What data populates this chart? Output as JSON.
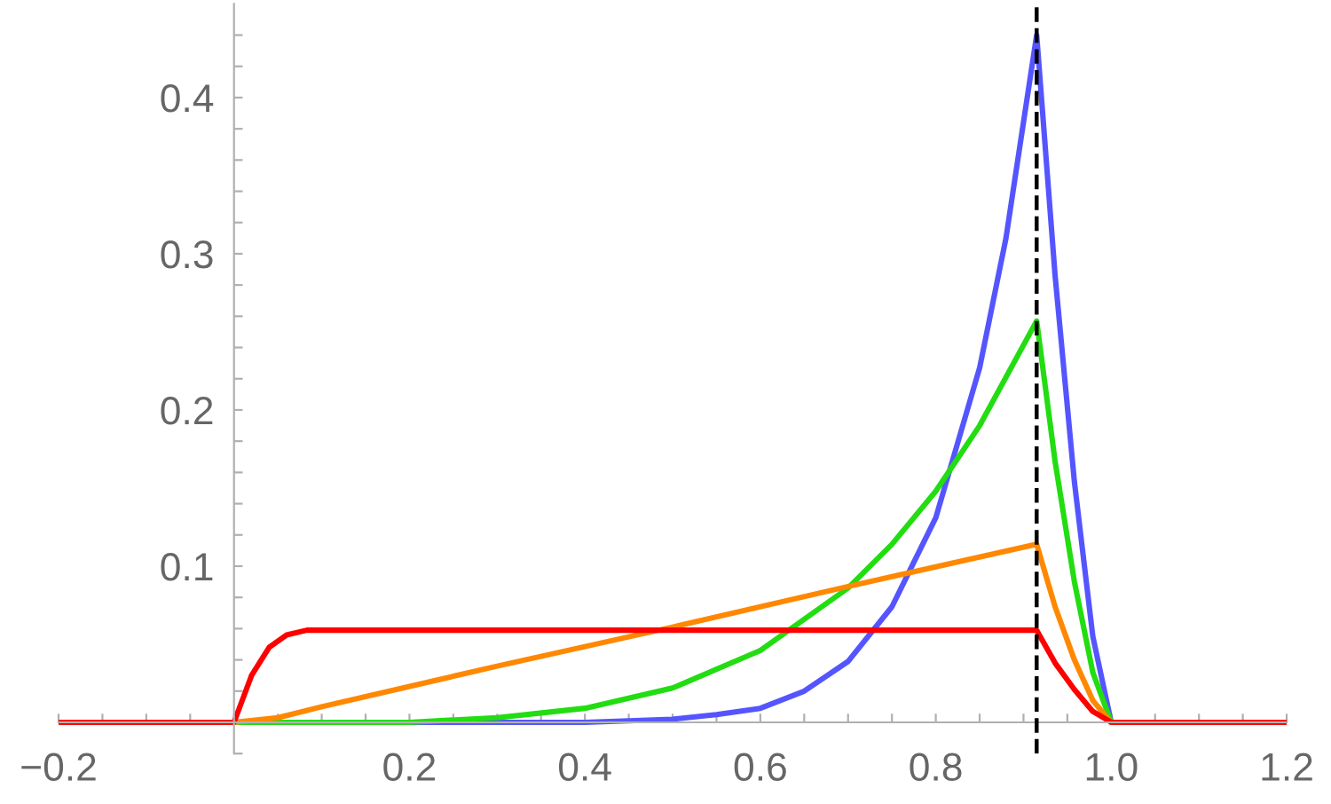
{
  "chart_data": {
    "type": "line",
    "xlim": [
      -0.2,
      1.2
    ],
    "ylim": [
      -0.02,
      0.46
    ],
    "xticks": [
      {
        "value": -0.2,
        "label": "−0.2"
      },
      {
        "value": -0.15,
        "label": null
      },
      {
        "value": -0.1,
        "label": null
      },
      {
        "value": -0.05,
        "label": null
      },
      {
        "value": 0,
        "label": null
      },
      {
        "value": 0.05,
        "label": null
      },
      {
        "value": 0.1,
        "label": null
      },
      {
        "value": 0.15,
        "label": null
      },
      {
        "value": 0.2,
        "label": "0.2"
      },
      {
        "value": 0.25,
        "label": null
      },
      {
        "value": 0.3,
        "label": null
      },
      {
        "value": 0.35,
        "label": null
      },
      {
        "value": 0.4,
        "label": "0.4"
      },
      {
        "value": 0.45,
        "label": null
      },
      {
        "value": 0.5,
        "label": null
      },
      {
        "value": 0.55,
        "label": null
      },
      {
        "value": 0.6,
        "label": "0.6"
      },
      {
        "value": 0.65,
        "label": null
      },
      {
        "value": 0.7,
        "label": null
      },
      {
        "value": 0.75,
        "label": null
      },
      {
        "value": 0.8,
        "label": "0.8"
      },
      {
        "value": 0.85,
        "label": null
      },
      {
        "value": 0.9,
        "label": null
      },
      {
        "value": 0.95,
        "label": null
      },
      {
        "value": 1.0,
        "label": "1.0"
      },
      {
        "value": 1.05,
        "label": null
      },
      {
        "value": 1.1,
        "label": null
      },
      {
        "value": 1.15,
        "label": null
      },
      {
        "value": 1.2,
        "label": "1.2"
      }
    ],
    "yticks": [
      {
        "value": -0.02,
        "label": null
      },
      {
        "value": 0.02,
        "label": null
      },
      {
        "value": 0.04,
        "label": null
      },
      {
        "value": 0.06,
        "label": null
      },
      {
        "value": 0.08,
        "label": null
      },
      {
        "value": 0.1,
        "label": "0.1"
      },
      {
        "value": 0.12,
        "label": null
      },
      {
        "value": 0.14,
        "label": null
      },
      {
        "value": 0.16,
        "label": null
      },
      {
        "value": 0.18,
        "label": null
      },
      {
        "value": 0.2,
        "label": "0.2"
      },
      {
        "value": 0.22,
        "label": null
      },
      {
        "value": 0.24,
        "label": null
      },
      {
        "value": 0.26,
        "label": null
      },
      {
        "value": 0.28,
        "label": null
      },
      {
        "value": 0.3,
        "label": "0.3"
      },
      {
        "value": 0.32,
        "label": null
      },
      {
        "value": 0.34,
        "label": null
      },
      {
        "value": 0.36,
        "label": null
      },
      {
        "value": 0.38,
        "label": null
      },
      {
        "value": 0.4,
        "label": "0.4"
      },
      {
        "value": 0.42,
        "label": null
      },
      {
        "value": 0.44,
        "label": null
      }
    ],
    "grid": false,
    "legend": false,
    "marker": "none",
    "line_style": "solid",
    "ref_lines": [
      {
        "axis": "x",
        "value": 0.915,
        "label": null,
        "color": "#000000",
        "line_style": "dashed"
      }
    ],
    "series": [
      {
        "color": "#5555ff",
        "x": [
          -0.2,
          0,
          0.3,
          0.4,
          0.5,
          0.55,
          0.6,
          0.65,
          0.7,
          0.75,
          0.8,
          0.85,
          0.88,
          0.915,
          0.936,
          0.958,
          0.979,
          1.0,
          1.2
        ],
        "values": [
          0,
          0,
          0,
          0,
          0.002,
          0.005,
          0.009,
          0.02,
          0.039,
          0.074,
          0.131,
          0.227,
          0.31,
          0.44,
          0.286,
          0.154,
          0.055,
          0,
          0
        ]
      },
      {
        "color": "#22dd11",
        "x": [
          -0.2,
          0,
          0.1,
          0.2,
          0.3,
          0.4,
          0.5,
          0.6,
          0.7,
          0.75,
          0.8,
          0.85,
          0.915,
          0.936,
          0.958,
          0.979,
          1.0,
          1.2
        ],
        "values": [
          0,
          0,
          0,
          0,
          0.003,
          0.009,
          0.022,
          0.046,
          0.086,
          0.114,
          0.148,
          0.19,
          0.257,
          0.167,
          0.09,
          0.032,
          0,
          0
        ]
      },
      {
        "color": "#ff8800",
        "x": [
          -0.2,
          0,
          0.05,
          0.1,
          0.3,
          0.5,
          0.7,
          0.915,
          0.936,
          0.958,
          0.979,
          1.0,
          1.2
        ],
        "values": [
          0,
          0,
          0.003,
          0.01,
          0.036,
          0.061,
          0.087,
          0.114,
          0.074,
          0.04,
          0.014,
          0,
          0
        ]
      },
      {
        "color": "#ff0000",
        "x": [
          -0.2,
          0,
          0.02,
          0.04,
          0.06,
          0.083,
          0.915,
          0.936,
          0.958,
          0.979,
          1.0,
          1.2
        ],
        "values": [
          0,
          0,
          0.03,
          0.048,
          0.056,
          0.059,
          0.059,
          0.038,
          0.021,
          0.007,
          0,
          0
        ]
      }
    ]
  }
}
